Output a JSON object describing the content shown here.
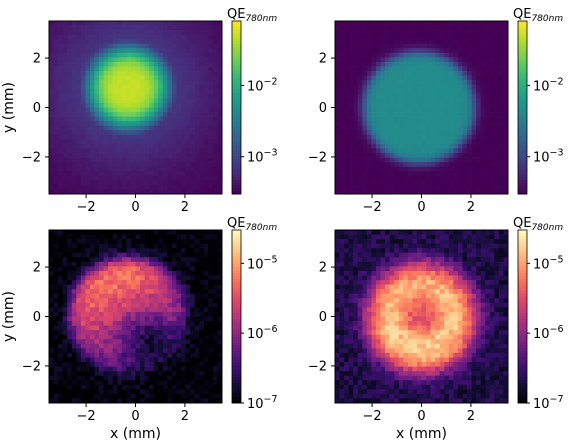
{
  "chart_data": [
    {
      "type": "heatmap",
      "position": "top-left",
      "colormap": "viridis",
      "xlabel": "",
      "ylabel": "y (mm)",
      "xlim": [
        -3.5,
        3.5
      ],
      "ylim": [
        -3.5,
        3.5
      ],
      "xticks": [
        "−2",
        "0",
        "2"
      ],
      "yticks": [
        "2",
        "0",
        "−2"
      ],
      "x_tick_values": [
        -2,
        0,
        2
      ],
      "y_tick_values": [
        2,
        0,
        -2
      ],
      "show_xtick_labels": true,
      "show_ytick_labels": true,
      "colorbar_label_main": "QE",
      "colorbar_label_sub": "780nm",
      "colorbar_scale": "log",
      "colorbar_range": [
        0.0003,
        0.08
      ],
      "colorbar_ticks": [
        {
          "base": "10",
          "exp": "−2",
          "value": 0.01
        },
        {
          "base": "10",
          "exp": "−3",
          "value": 0.001
        }
      ],
      "spot": {
        "center_x": -0.3,
        "center_y": 0.8,
        "radius_mm": 2.2,
        "peak": 0.05,
        "floor": 0.0003,
        "shape": "gaussian-flat"
      }
    },
    {
      "type": "heatmap",
      "position": "top-right",
      "colormap": "viridis",
      "xlabel": "",
      "ylabel": "",
      "xlim": [
        -3.5,
        3.5
      ],
      "ylim": [
        -3.5,
        3.5
      ],
      "xticks": [
        "−2",
        "0",
        "2"
      ],
      "yticks": [
        "2",
        "0",
        "−2"
      ],
      "x_tick_values": [
        -2,
        0,
        2
      ],
      "y_tick_values": [
        2,
        0,
        -2
      ],
      "show_xtick_labels": true,
      "show_ytick_labels": true,
      "colorbar_label_main": "QE",
      "colorbar_label_sub": "780nm",
      "colorbar_scale": "log",
      "colorbar_range": [
        0.0003,
        0.08
      ],
      "colorbar_ticks": [
        {
          "base": "10",
          "exp": "−2",
          "value": 0.01
        },
        {
          "base": "10",
          "exp": "−3",
          "value": 0.001
        }
      ],
      "spot": {
        "center_x": -0.1,
        "center_y": 0.0,
        "radius_mm": 2.25,
        "peak": 0.0045,
        "floor": 0.0003,
        "shape": "disk"
      }
    },
    {
      "type": "heatmap",
      "position": "bottom-left",
      "colormap": "magma",
      "xlabel": "x (mm)",
      "ylabel": "y (mm)",
      "xlim": [
        -3.5,
        3.5
      ],
      "ylim": [
        -3.5,
        3.5
      ],
      "xticks": [
        "−2",
        "0",
        "2"
      ],
      "yticks": [
        "2",
        "0",
        "−2"
      ],
      "x_tick_values": [
        -2,
        0,
        2
      ],
      "y_tick_values": [
        2,
        0,
        -2
      ],
      "show_xtick_labels": true,
      "show_ytick_labels": true,
      "colorbar_label_main": "QE",
      "colorbar_label_sub": "780nm",
      "colorbar_scale": "log",
      "colorbar_range": [
        1e-07,
        3e-05
      ],
      "colorbar_ticks": [
        {
          "base": "10",
          "exp": "−5",
          "value": 1e-05
        },
        {
          "base": "10",
          "exp": "−6",
          "value": 1e-06
        },
        {
          "base": "10",
          "exp": "−7",
          "value": 1e-07
        }
      ],
      "spot": {
        "center_x": -0.3,
        "center_y": 0.0,
        "radius_mm": 2.35,
        "peak": 7e-06,
        "floor": 1e-07,
        "shape": "tilted"
      }
    },
    {
      "type": "heatmap",
      "position": "bottom-right",
      "colormap": "magma",
      "xlabel": "x (mm)",
      "ylabel": "",
      "xlim": [
        -3.5,
        3.5
      ],
      "ylim": [
        -3.5,
        3.5
      ],
      "xticks": [
        "−2",
        "0",
        "2"
      ],
      "yticks": [
        "2",
        "0",
        "−2"
      ],
      "x_tick_values": [
        -2,
        0,
        2
      ],
      "y_tick_values": [
        2,
        0,
        -2
      ],
      "show_xtick_labels": true,
      "show_ytick_labels": true,
      "colorbar_label_main": "QE",
      "colorbar_label_sub": "780nm",
      "colorbar_scale": "log",
      "colorbar_range": [
        1e-07,
        3e-05
      ],
      "colorbar_ticks": [
        {
          "base": "10",
          "exp": "−5",
          "value": 1e-05
        },
        {
          "base": "10",
          "exp": "−6",
          "value": 1e-06
        },
        {
          "base": "10",
          "exp": "−7",
          "value": 1e-07
        }
      ],
      "spot": {
        "center_x": 0.0,
        "center_y": 0.0,
        "radius_mm": 2.4,
        "peak": 1.5e-05,
        "floor": 2e-07,
        "shape": "ring"
      }
    }
  ]
}
